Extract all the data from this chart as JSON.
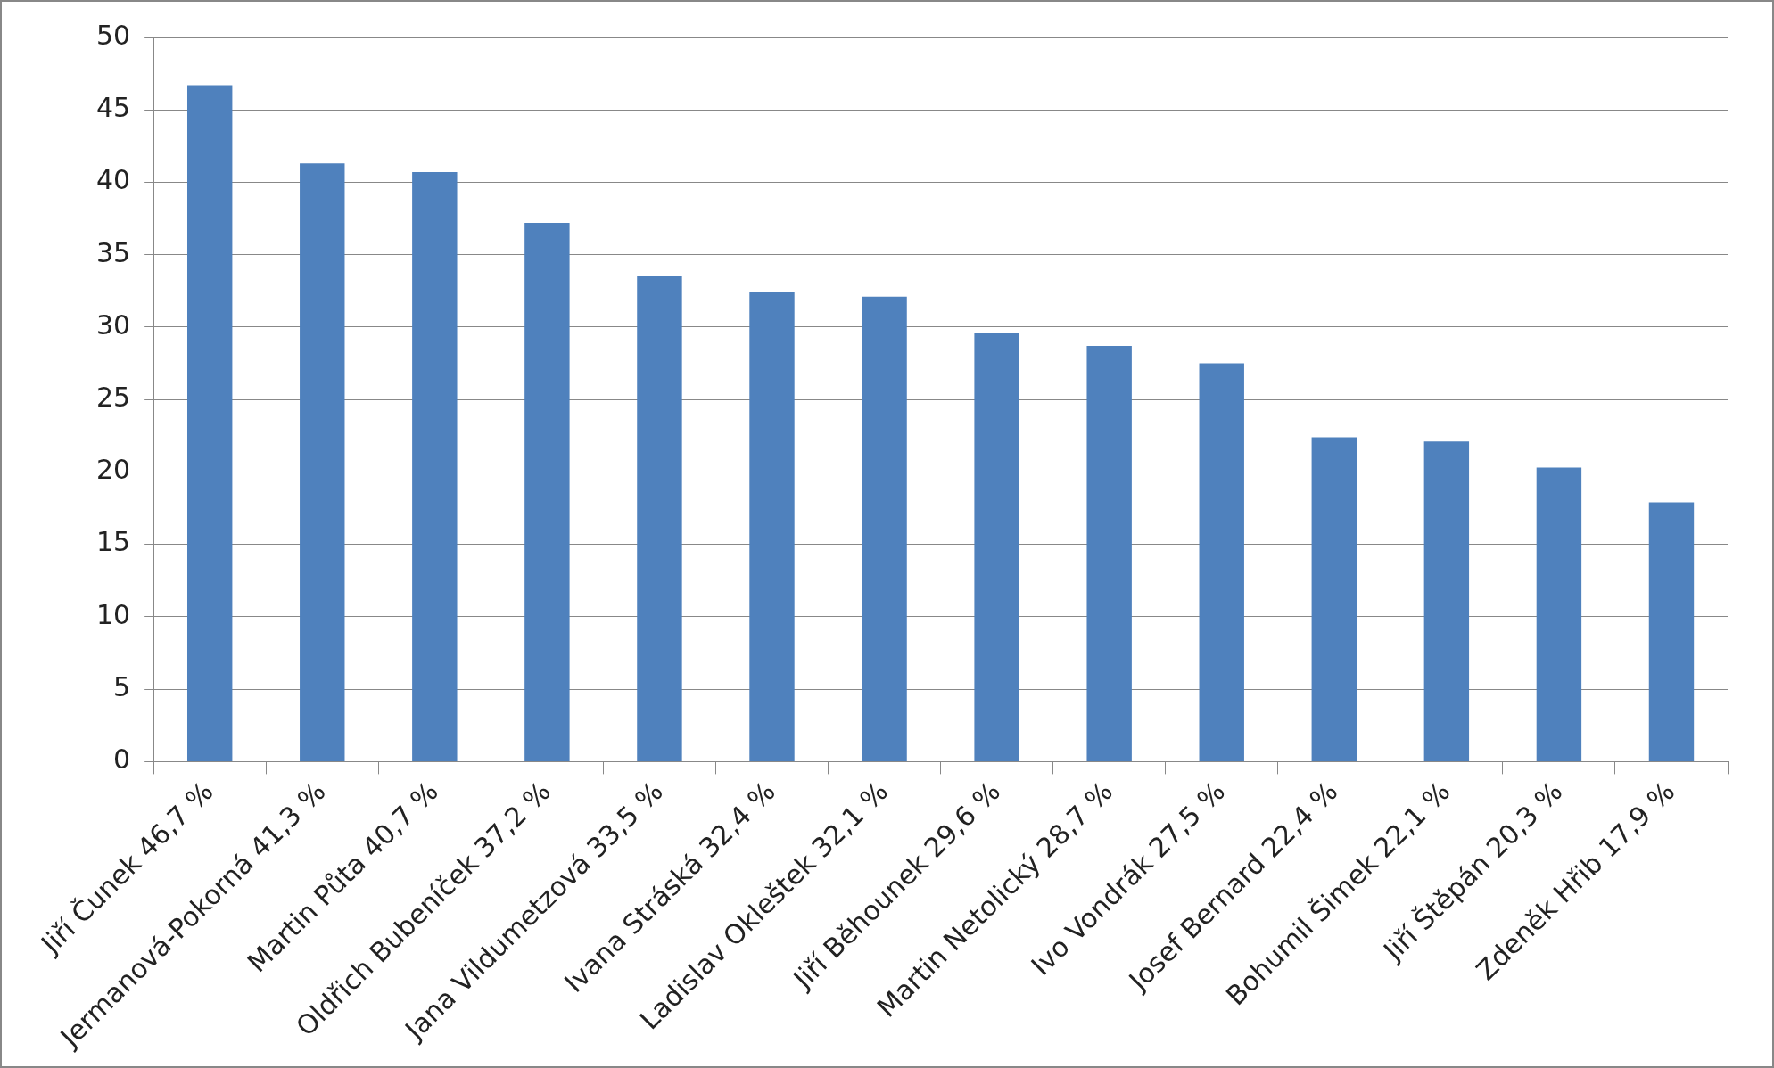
{
  "chart_data": {
    "type": "bar",
    "categories": [
      "Jiří Čunek 46,7 %",
      "Jermanová-Pokorná 41,3 %",
      "Martin Půta 40,7 %",
      "Oldřich Bubeníček 37,2 %",
      "Jana Vildumetzová 33,5 %",
      "Ivana Stráská 32,4 %",
      "Ladislav Okleštek 32,1 %",
      "Jiří Běhounek 29,6 %",
      "Martin Netolický 28,7 %",
      "Ivo Vondrák 27,5 %",
      "Josef Bernard 22,4 %",
      "Bohumil Šimek 22,1 %",
      "Jiří Štěpán 20,3 %",
      "Zdeněk Hřib 17,9 %"
    ],
    "values": [
      46.7,
      41.3,
      40.7,
      37.2,
      33.5,
      32.4,
      32.1,
      29.6,
      28.7,
      27.5,
      22.4,
      22.1,
      20.3,
      17.9
    ],
    "color": "#4f81bd",
    "ylim": [
      0,
      50
    ],
    "yticks": [
      0,
      5,
      10,
      15,
      20,
      25,
      30,
      35,
      40,
      45,
      50
    ],
    "grid": "y",
    "legend": false
  }
}
